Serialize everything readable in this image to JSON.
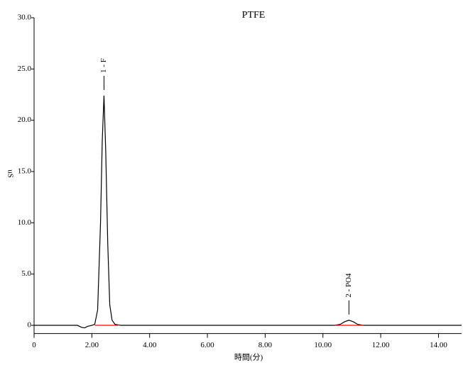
{
  "chart_data": {
    "type": "line",
    "title": "PTFE",
    "x_label": "時間(分)",
    "y_label": "uS",
    "xlim": [
      0,
      14.8
    ],
    "ylim": [
      -0.8,
      30
    ],
    "xticks": [
      0,
      {
        "value": 2,
        "label": "2.00"
      },
      {
        "value": 4,
        "label": "4.00"
      },
      {
        "value": 6,
        "label": "6.00"
      },
      {
        "value": 8,
        "label": "8.00"
      },
      {
        "value": 10,
        "label": "10.00"
      },
      {
        "value": 12,
        "label": "12.00"
      },
      {
        "value": 14,
        "label": "14.00"
      }
    ],
    "yticks": [
      0,
      {
        "value": 5,
        "label": "5.0"
      },
      {
        "value": 10,
        "label": "10.0"
      },
      {
        "value": 15,
        "label": "15.0"
      },
      {
        "value": 20,
        "label": "20.0"
      },
      {
        "value": 25,
        "label": "25.0"
      },
      {
        "value": 30,
        "label": "30.0"
      }
    ],
    "series": [
      {
        "color": "#000000",
        "x": [
          0,
          1.5,
          1.65,
          1.75,
          1.85,
          2.0,
          2.1,
          2.2,
          2.3,
          2.36,
          2.42,
          2.48,
          2.55,
          2.62,
          2.7,
          2.8,
          3.0,
          3.5,
          10.4,
          10.6,
          10.75,
          10.9,
          11.05,
          11.2,
          11.4,
          14.8
        ],
        "values": [
          0,
          0,
          -0.2,
          -0.25,
          -0.1,
          0,
          0.1,
          1.5,
          10,
          18,
          22.4,
          17,
          8,
          2,
          0.5,
          0.1,
          0,
          0,
          0,
          0.1,
          0.35,
          0.5,
          0.35,
          0.1,
          0,
          0
        ]
      },
      {
        "color": "#ff0000",
        "x": [
          2.1,
          2.9
        ],
        "values": [
          0,
          0
        ]
      },
      {
        "color": "#ff0000",
        "x": [
          10.45,
          11.4
        ],
        "values": [
          0,
          0
        ]
      }
    ],
    "annotations": [
      {
        "text": "1 - F",
        "x": 2.42
      },
      {
        "text": "2 - PO4",
        "x": 10.9
      }
    ]
  }
}
